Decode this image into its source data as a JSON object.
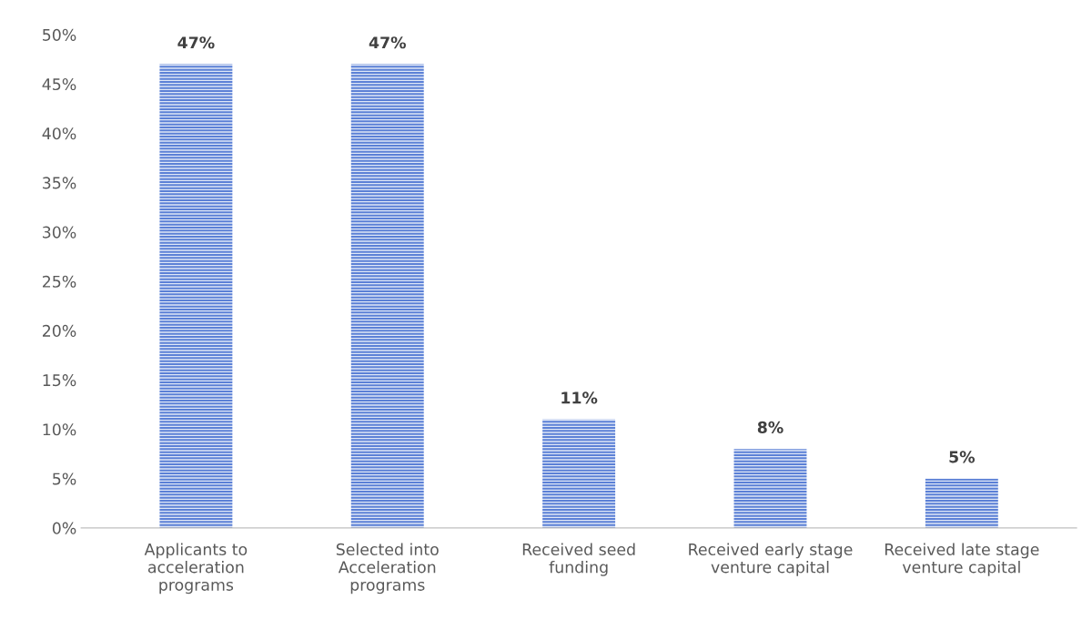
{
  "chart_data": {
    "type": "bar",
    "categories": [
      "Applicants to\nacceleration\nprograms",
      "Selected into\nAcceleration\nprograms",
      "Received seed\nfunding",
      "Received early stage\nventure capital",
      "Received late stage\nventure capital"
    ],
    "values": [
      47,
      47,
      11,
      8,
      5
    ],
    "value_labels": [
      "47%",
      "47%",
      "11%",
      "8%",
      "5%"
    ],
    "color": "#5b80d6",
    "ylim": [
      0,
      50
    ],
    "yticks": [
      {
        "value": 0,
        "label": "0%"
      },
      {
        "value": 5,
        "label": "5%"
      },
      {
        "value": 10,
        "label": "10%"
      },
      {
        "value": 15,
        "label": "15%"
      },
      {
        "value": 20,
        "label": "20%"
      },
      {
        "value": 25,
        "label": "25%"
      },
      {
        "value": 30,
        "label": "30%"
      },
      {
        "value": 35,
        "label": "35%"
      },
      {
        "value": 40,
        "label": "40%"
      },
      {
        "value": 45,
        "label": "45%"
      },
      {
        "value": 50,
        "label": "50%"
      }
    ],
    "grid": false,
    "legend": false
  }
}
